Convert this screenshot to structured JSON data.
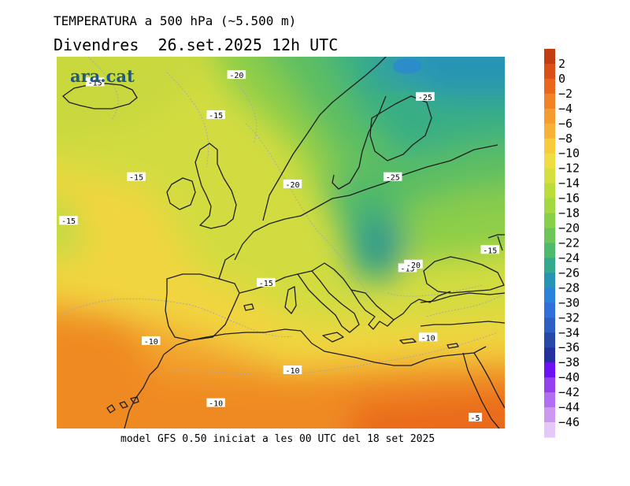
{
  "title": "TEMPERATURA a 500 hPa (~5.500 m)",
  "subtitle": "Divendres  26.set.2025 12h UTC",
  "footer": "model GFS 0.50 iniciat a les 00 UTC del 18 set 2025",
  "brand": "ara.cat",
  "brand_color": "#1d5a86",
  "contour_labels": [
    {
      "value": "-15",
      "lon": -23.5,
      "lat": 66.5
    },
    {
      "value": "-20",
      "lon": 0.5,
      "lat": 67.5
    },
    {
      "value": "-25",
      "lon": 32.5,
      "lat": 64.5
    },
    {
      "value": "-15",
      "lon": -3.0,
      "lat": 62.0
    },
    {
      "value": "-15",
      "lon": -16.5,
      "lat": 53.5
    },
    {
      "value": "-20",
      "lon": 10.0,
      "lat": 52.5
    },
    {
      "value": "-25",
      "lon": 27.0,
      "lat": 53.5
    },
    {
      "value": "-15",
      "lon": -28.0,
      "lat": 47.5
    },
    {
      "value": "-15",
      "lon": 43.5,
      "lat": 43.5
    },
    {
      "value": "-15",
      "lon": 29.5,
      "lat": 41.0
    },
    {
      "value": "-20",
      "lon": 30.5,
      "lat": 41.5
    },
    {
      "value": "-15",
      "lon": 5.5,
      "lat": 39.0
    },
    {
      "value": "-10",
      "lon": -14.0,
      "lat": 31.0
    },
    {
      "value": "-10",
      "lon": 33.0,
      "lat": 31.5
    },
    {
      "value": "-10",
      "lon": 10.0,
      "lat": 27.0
    },
    {
      "value": "-10",
      "lon": -3.0,
      "lat": 22.5
    },
    {
      "value": "-5",
      "lon": 41.0,
      "lat": 20.5
    }
  ],
  "colorbar": {
    "labels": [
      "2",
      "0",
      "−2",
      "−4",
      "−6",
      "−8",
      "−10",
      "−12",
      "−14",
      "−16",
      "−18",
      "−20",
      "−22",
      "−24",
      "−26",
      "−28",
      "−30",
      "−32",
      "−34",
      "−36",
      "−38",
      "−40",
      "−42",
      "−44",
      "−46"
    ],
    "colors": [
      "#c43c12",
      "#db4e16",
      "#ea661c",
      "#f28228",
      "#f59b30",
      "#f7b236",
      "#f8cb3c",
      "#eede44",
      "#d6df40",
      "#bcdc3c",
      "#a2d840",
      "#86d04a",
      "#6cc658",
      "#4fba6c",
      "#33aa8c",
      "#2694b4",
      "#2b82dc",
      "#3170dc",
      "#2c5ec4",
      "#2848a8",
      "#2430a0",
      "#6e0ff4",
      "#9640f0",
      "#b26ef0",
      "#cc98f0",
      "#e6c8f8"
    ]
  }
}
